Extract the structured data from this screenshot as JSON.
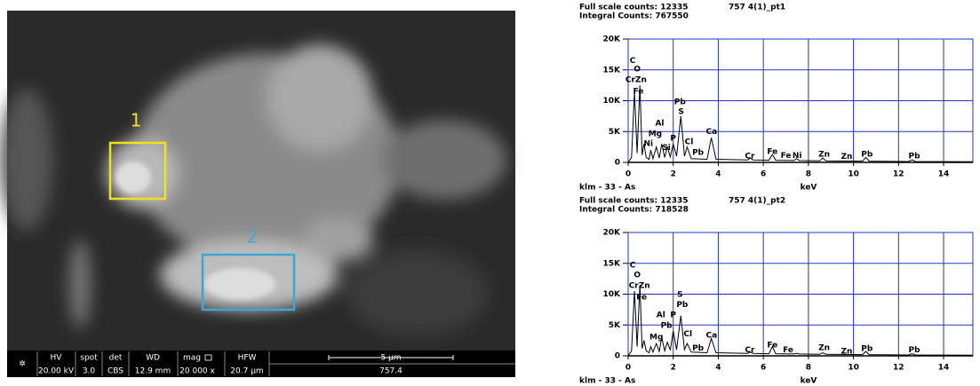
{
  "image": {
    "labels": [
      "1",
      "2"
    ],
    "info_bar": {
      "headers": [
        "HV",
        "spot",
        "det",
        "WD",
        "mag",
        "HFW"
      ],
      "values": [
        "20.00 kV",
        "3.0",
        "CBS",
        "12.9 mm",
        "20 000 x",
        "20.7 µm"
      ]
    },
    "scale_bar": "5 µm",
    "sample": "757.4"
  },
  "chart_data": [
    {
      "type": "line",
      "full_scale": "Full scale counts: 12335",
      "title": "757 4(1)_pt1",
      "integral": "Integral Counts: 767550",
      "footer": "klm - 33 - As",
      "x_label": "keV",
      "color": "#000000",
      "grid": true,
      "grid_color": "#2233cc",
      "xlim": [
        0,
        15.3
      ],
      "ylim": [
        0,
        20000
      ],
      "xticks": [
        0,
        2,
        4,
        6,
        8,
        10,
        12,
        14
      ],
      "yticks": [
        0,
        {
          "value": 5000,
          "label": "5K"
        },
        {
          "value": 10000,
          "label": "10K"
        },
        {
          "value": 15000,
          "label": "15K"
        },
        {
          "value": 20000,
          "label": "20K"
        }
      ],
      "x": [
        0,
        0.15,
        0.28,
        0.4,
        0.52,
        0.62,
        0.7,
        0.8,
        0.93,
        1.0,
        1.1,
        1.25,
        1.38,
        1.49,
        1.62,
        1.74,
        1.87,
        2.0,
        2.15,
        2.34,
        2.5,
        2.62,
        2.8,
        3.5,
        3.69,
        3.9,
        5.3,
        5.41,
        5.55,
        6.25,
        6.4,
        6.55,
        7.35,
        7.47,
        7.6,
        8.5,
        8.63,
        8.78,
        10.4,
        10.55,
        10.7,
        12.45,
        12.6,
        12.75,
        15.3
      ],
      "values": [
        0,
        800,
        11500,
        1500,
        12500,
        1200,
        3000,
        800,
        500,
        2000,
        600,
        2500,
        700,
        3000,
        800,
        2500,
        900,
        3000,
        1000,
        7500,
        1000,
        2500,
        600,
        500,
        4000,
        500,
        400,
        700,
        400,
        350,
        1300,
        350,
        300,
        600,
        300,
        250,
        700,
        250,
        200,
        800,
        200,
        150,
        400,
        150,
        100
      ],
      "annotations": [
        {
          "text": "C",
          "x": 0.2,
          "y": 16500
        },
        {
          "text": "O",
          "x": 0.4,
          "y": 15100
        },
        {
          "text": "CrZn",
          "x": 0.35,
          "y": 13400
        },
        {
          "text": "Fe",
          "x": 0.45,
          "y": 11500
        },
        {
          "text": "Pb",
          "x": 2.3,
          "y": 9800
        },
        {
          "text": "S",
          "x": 2.35,
          "y": 8200
        },
        {
          "text": "Al",
          "x": 1.4,
          "y": 6300
        },
        {
          "text": "Mg",
          "x": 1.2,
          "y": 4600
        },
        {
          "text": "P",
          "x": 2.0,
          "y": 3900
        },
        {
          "text": "Si",
          "x": 1.7,
          "y": 2400
        },
        {
          "text": "Ni",
          "x": 0.9,
          "y": 3000
        },
        {
          "text": "Cl",
          "x": 2.7,
          "y": 3300
        },
        {
          "text": "Ca",
          "x": 3.7,
          "y": 5000
        },
        {
          "text": "Pb",
          "x": 3.1,
          "y": 1600
        },
        {
          "text": "Cr",
          "x": 5.4,
          "y": 1000
        },
        {
          "text": "Fe",
          "x": 6.4,
          "y": 1700
        },
        {
          "text": "Fe",
          "x": 7.0,
          "y": 1100
        },
        {
          "text": "Ni",
          "x": 7.5,
          "y": 1100
        },
        {
          "text": "Zn",
          "x": 8.7,
          "y": 1300
        },
        {
          "text": "Zn",
          "x": 9.7,
          "y": 900
        },
        {
          "text": "Pb",
          "x": 10.6,
          "y": 1300
        },
        {
          "text": "Pb",
          "x": 12.7,
          "y": 1000
        }
      ]
    },
    {
      "type": "line",
      "full_scale": "Full scale counts: 12335",
      "title": "757 4(1)_pt2",
      "integral": "Integral Counts: 718528",
      "footer": "klm - 33 - As",
      "x_label": "keV",
      "color": "#000000",
      "grid": true,
      "grid_color": "#2233cc",
      "xlim": [
        0,
        15.3
      ],
      "ylim": [
        0,
        20000
      ],
      "xticks": [
        0,
        2,
        4,
        6,
        8,
        10,
        12,
        14
      ],
      "yticks": [
        0,
        {
          "value": 5000,
          "label": "5K"
        },
        {
          "value": 10000,
          "label": "10K"
        },
        {
          "value": 15000,
          "label": "15K"
        },
        {
          "value": 20000,
          "label": "20K"
        }
      ],
      "x": [
        0,
        0.15,
        0.28,
        0.4,
        0.52,
        0.62,
        0.7,
        0.8,
        0.93,
        1.0,
        1.1,
        1.25,
        1.38,
        1.49,
        1.62,
        1.74,
        1.87,
        2.0,
        2.15,
        2.34,
        2.5,
        2.62,
        2.8,
        3.5,
        3.69,
        3.9,
        5.3,
        5.41,
        5.55,
        6.25,
        6.4,
        6.55,
        7.35,
        7.47,
        7.6,
        8.5,
        8.63,
        8.78,
        10.4,
        10.55,
        10.7,
        12.45,
        12.6,
        12.75,
        15.3
      ],
      "values": [
        0,
        800,
        10500,
        1500,
        11500,
        1200,
        2500,
        800,
        500,
        1500,
        600,
        2000,
        700,
        3000,
        800,
        2200,
        900,
        4000,
        1000,
        6500,
        1000,
        2000,
        600,
        500,
        2800,
        500,
        400,
        600,
        400,
        350,
        1500,
        350,
        300,
        400,
        300,
        250,
        500,
        250,
        200,
        700,
        200,
        150,
        350,
        150,
        100
      ],
      "annotations": [
        {
          "text": "C",
          "x": 0.2,
          "y": 14700
        },
        {
          "text": "O",
          "x": 0.4,
          "y": 13100
        },
        {
          "text": "CrZn",
          "x": 0.5,
          "y": 11400
        },
        {
          "text": "Fe",
          "x": 0.6,
          "y": 9500
        },
        {
          "text": "S",
          "x": 2.3,
          "y": 9900
        },
        {
          "text": "Pb",
          "x": 2.4,
          "y": 8300
        },
        {
          "text": "Al",
          "x": 1.45,
          "y": 6600
        },
        {
          "text": "P",
          "x": 2.0,
          "y": 6600
        },
        {
          "text": "Pb",
          "x": 1.7,
          "y": 4900
        },
        {
          "text": "Mg",
          "x": 1.25,
          "y": 3000
        },
        {
          "text": "Cl",
          "x": 2.65,
          "y": 3500
        },
        {
          "text": "Pb",
          "x": 3.1,
          "y": 1200
        },
        {
          "text": "Ca",
          "x": 3.7,
          "y": 3300
        },
        {
          "text": "Cr",
          "x": 5.4,
          "y": 900
        },
        {
          "text": "Fe",
          "x": 6.4,
          "y": 1700
        },
        {
          "text": "Fe",
          "x": 7.1,
          "y": 900
        },
        {
          "text": "Zn",
          "x": 8.7,
          "y": 1300
        },
        {
          "text": "Zn",
          "x": 9.7,
          "y": 700
        },
        {
          "text": "Pb",
          "x": 10.6,
          "y": 1150
        },
        {
          "text": "Pb",
          "x": 12.7,
          "y": 900
        }
      ]
    }
  ]
}
